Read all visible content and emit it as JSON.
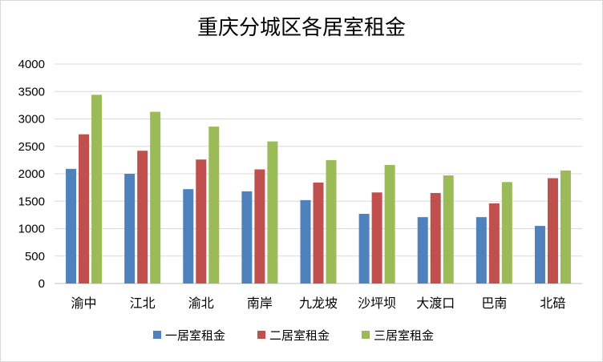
{
  "chart_data": {
    "type": "bar",
    "title": "重庆分城区各居室租金",
    "xlabel": "",
    "ylabel": "",
    "ylim": [
      0,
      4000
    ],
    "yticks": [
      0,
      500,
      1000,
      1500,
      2000,
      2500,
      3000,
      3500,
      4000
    ],
    "grid": true,
    "legend_position": "bottom",
    "categories": [
      "渝中",
      "江北",
      "渝北",
      "南岸",
      "九龙坡",
      "沙坪坝",
      "大渡口",
      "巴南",
      "北碚"
    ],
    "series": [
      {
        "name": "一居室租金",
        "color": "#4F81BD",
        "values": [
          2090,
          2000,
          1720,
          1680,
          1520,
          1270,
          1210,
          1210,
          1050
        ]
      },
      {
        "name": "二居室租金",
        "color": "#C0504D",
        "values": [
          2720,
          2420,
          2260,
          2080,
          1840,
          1660,
          1650,
          1460,
          1920
        ]
      },
      {
        "name": "三居室租金",
        "color": "#9BBB59",
        "values": [
          3440,
          3130,
          2860,
          2590,
          2250,
          2160,
          1970,
          1850,
          2060
        ]
      }
    ]
  }
}
